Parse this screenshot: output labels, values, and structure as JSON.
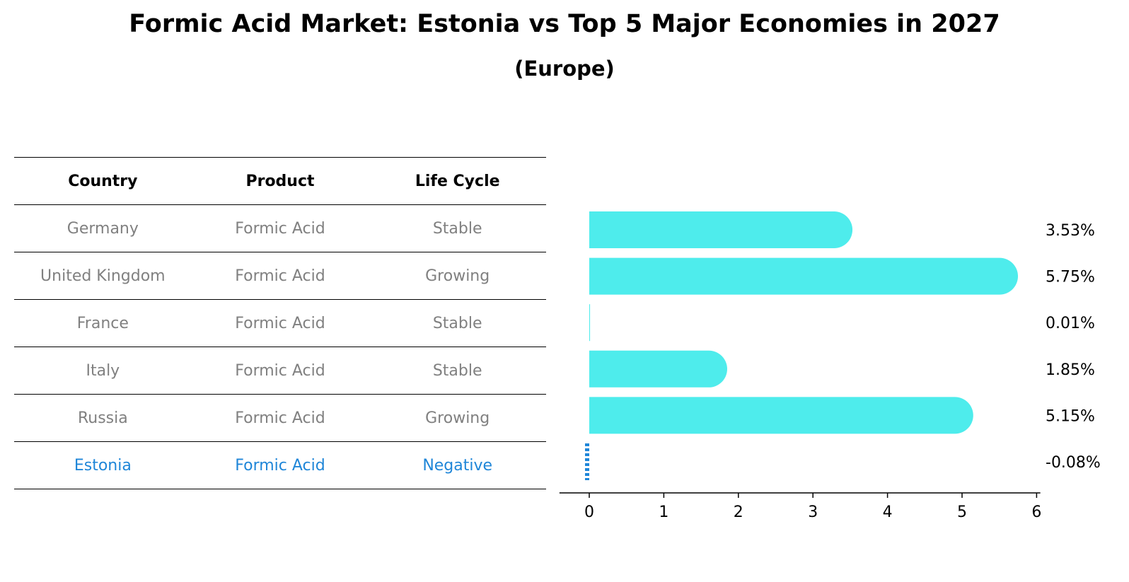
{
  "chart_data": {
    "type": "bar",
    "title": "Formic Acid Market: Estonia vs Top 5 Major Economies in 2027",
    "subtitle": "(Europe)",
    "table": {
      "headers": [
        "Country",
        "Product",
        "Life Cycle"
      ],
      "rows": [
        [
          "Germany",
          "Formic Acid",
          "Stable"
        ],
        [
          "United Kingdom",
          "Formic Acid",
          "Growing"
        ],
        [
          "France",
          "Formic Acid",
          "Stable"
        ],
        [
          "Italy",
          "Formic Acid",
          "Stable"
        ],
        [
          "Russia",
          "Formic Acid",
          "Growing"
        ],
        [
          "Estonia",
          "Formic Acid",
          "Negative"
        ]
      ]
    },
    "categories": [
      "Germany",
      "United Kingdom",
      "France",
      "Italy",
      "Russia",
      "Estonia"
    ],
    "values": [
      3.53,
      5.75,
      0.01,
      1.85,
      5.15,
      -0.08
    ],
    "value_labels": [
      "3.53%",
      "5.75%",
      "0.01%",
      "1.85%",
      "5.15%",
      "-0.08%"
    ],
    "xlim": [
      -0.4,
      6.05
    ],
    "xticks": [
      0,
      1,
      2,
      3,
      4,
      5,
      6
    ],
    "highlight": "Estonia",
    "colors": {
      "bar": "#4eecec",
      "highlight": "#1f86d8",
      "muted_text": "#808080"
    }
  }
}
